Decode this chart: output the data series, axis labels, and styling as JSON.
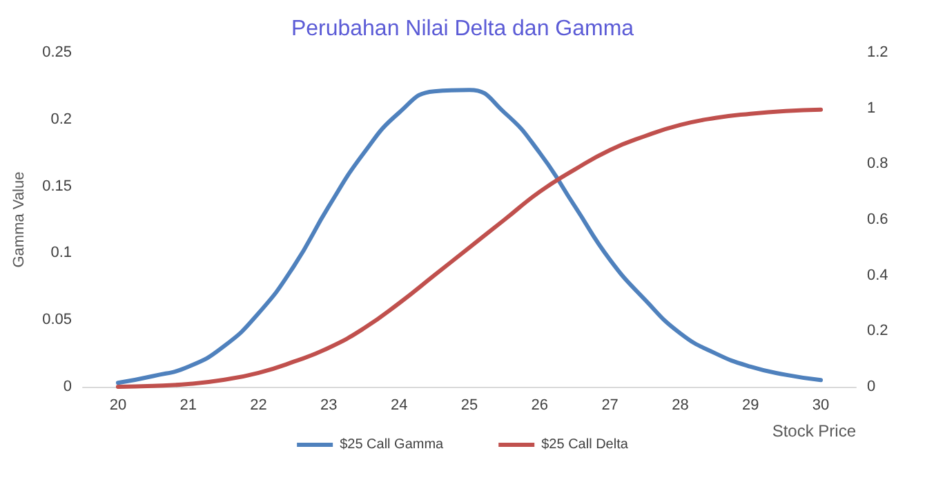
{
  "chart_data": {
    "type": "line",
    "title": "Perubahan Nilai Delta dan Gamma",
    "xlabel": "Stock Price",
    "ylabel": "Gamma Value",
    "x": [
      20,
      20.5,
      21,
      21.5,
      22,
      22.5,
      23,
      23.5,
      24,
      24.5,
      25,
      25.5,
      26,
      26.5,
      27,
      27.5,
      28,
      28.5,
      29,
      29.5,
      30
    ],
    "series": [
      {
        "name": "$25 Call Gamma",
        "color": "#4f81bd",
        "values": [
          0.003,
          0.008,
          0.015,
          0.03,
          0.055,
          0.09,
          0.135,
          0.175,
          0.205,
          0.221,
          0.222,
          0.205,
          0.175,
          0.135,
          0.095,
          0.065,
          0.04,
          0.025,
          0.015,
          0.009,
          0.005
        ]
      },
      {
        "name": "$25 Call Delta",
        "color": "#c0504d",
        "axis": "y2",
        "values": [
          0.0,
          0.003,
          0.01,
          0.025,
          0.05,
          0.09,
          0.14,
          0.21,
          0.3,
          0.4,
          0.5,
          0.6,
          0.7,
          0.78,
          0.85,
          0.9,
          0.94,
          0.965,
          0.98,
          0.99,
          0.995
        ]
      }
    ],
    "xlim": [
      19.5,
      30.5
    ],
    "xticks": [
      20,
      21,
      22,
      23,
      24,
      25,
      26,
      27,
      28,
      29,
      30
    ],
    "ylim": [
      0,
      0.25
    ],
    "yticks": [
      0,
      0.05,
      0.1,
      0.15,
      0.2,
      0.25
    ],
    "y2lim": [
      0,
      1.2
    ],
    "y2ticks": [
      0,
      0.2,
      0.4,
      0.6,
      0.8,
      1,
      1.2
    ],
    "grid": false,
    "legend": "bottom",
    "marker": "none",
    "line_style": "solid"
  }
}
